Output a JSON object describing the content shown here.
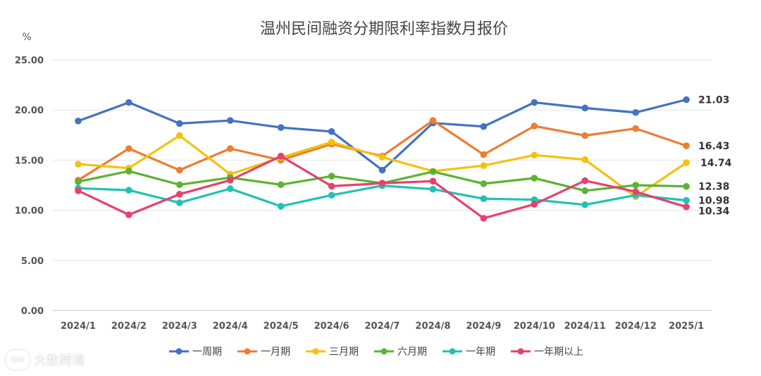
{
  "chart_data": {
    "type": "line",
    "title": "温州民间融资分期限利率指数月报价",
    "ylabel": "%",
    "xlabel": "",
    "ylim": [
      0,
      25
    ],
    "yticks": [
      "0.00",
      "5.00",
      "10.00",
      "15.00",
      "20.00",
      "25.00"
    ],
    "ytick_values": [
      0,
      5,
      10,
      15,
      20,
      25
    ],
    "categories": [
      "2024/1",
      "2024/2",
      "2024/3",
      "2024/4",
      "2024/5",
      "2024/6",
      "2024/7",
      "2024/8",
      "2024/9",
      "2024/10",
      "2024/11",
      "2024/12",
      "2025/1"
    ],
    "grid": true,
    "legend_position": "bottom",
    "series": [
      {
        "name": "一周期",
        "color": "#4472C4",
        "end_label": "21.03",
        "values": [
          18.9,
          20.75,
          18.65,
          18.95,
          18.25,
          17.85,
          14.0,
          18.7,
          18.35,
          20.75,
          20.2,
          19.75,
          21.03
        ]
      },
      {
        "name": "一月期",
        "color": "#ED7D31",
        "end_label": "16.43",
        "values": [
          13.0,
          16.15,
          14.0,
          16.15,
          15.0,
          16.6,
          15.4,
          18.95,
          15.55,
          18.4,
          17.45,
          18.15,
          16.43
        ]
      },
      {
        "name": "三月期",
        "color": "#F4C20D",
        "end_label": "14.74",
        "values": [
          14.6,
          14.2,
          17.45,
          13.6,
          15.25,
          16.8,
          15.3,
          13.9,
          14.45,
          15.5,
          15.05,
          11.35,
          14.74
        ]
      },
      {
        "name": "六月期",
        "color": "#5BB331",
        "end_label": "12.38",
        "values": [
          12.85,
          13.9,
          12.55,
          13.25,
          12.55,
          13.4,
          12.7,
          13.85,
          12.65,
          13.2,
          11.95,
          12.5,
          12.38
        ]
      },
      {
        "name": "一年期",
        "color": "#1FC2B4",
        "end_label": "10.98",
        "values": [
          12.2,
          12.0,
          10.75,
          12.15,
          10.4,
          11.5,
          12.45,
          12.1,
          11.15,
          11.05,
          10.55,
          11.5,
          10.98
        ]
      },
      {
        "name": "一年期以上",
        "color": "#E8406A",
        "end_label": "10.34",
        "values": [
          11.95,
          9.55,
          11.6,
          13.0,
          15.4,
          12.4,
          12.7,
          12.9,
          9.2,
          10.6,
          12.95,
          11.85,
          10.34
        ]
      }
    ]
  },
  "watermark": {
    "text": "大数跨境",
    "icon": "brand-logo-icon",
    "icon_text": "IDO"
  }
}
